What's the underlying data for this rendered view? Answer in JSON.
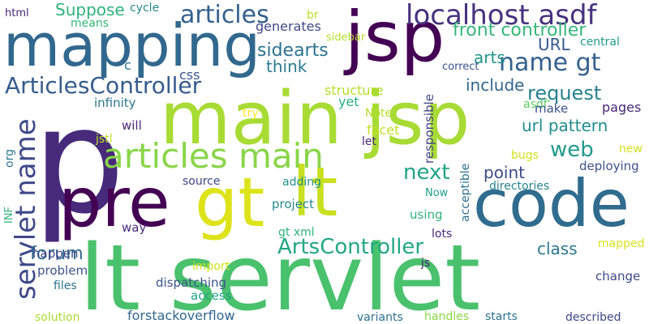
{
  "words": [
    {
      "text": "p",
      "color": "#472a7a"
    },
    {
      "text": "lt servlet",
      "color": "#4ac16d"
    },
    {
      "text": "main jsp",
      "color": "#a8db34"
    },
    {
      "text": "mapping",
      "color": "#31688e"
    },
    {
      "text": "jsp",
      "color": "#440154"
    },
    {
      "text": "pre",
      "color": "#440154"
    },
    {
      "text": "gt",
      "color": "#dde318"
    },
    {
      "text": "lt",
      "color": "#c8e020"
    },
    {
      "text": "code",
      "color": "#2f6c8e"
    },
    {
      "text": "articles main",
      "color": "#89d548"
    },
    {
      "text": "localhost asdf",
      "color": "#46327e"
    },
    {
      "text": "servlet name",
      "color": "#3e4989"
    },
    {
      "text": "ArticlesController",
      "color": "#365c8d"
    },
    {
      "text": "articles",
      "color": "#34618d"
    },
    {
      "text": "name gt",
      "color": "#34608d"
    },
    {
      "text": "ArtsController",
      "color": "#22a785"
    },
    {
      "text": "front controller",
      "color": "#35b779"
    },
    {
      "text": "request",
      "color": "#26828e"
    },
    {
      "text": "web",
      "color": "#1f9a8a"
    },
    {
      "text": "next",
      "color": "#20a386"
    },
    {
      "text": "url pattern",
      "color": "#228c8d"
    },
    {
      "text": "forum",
      "color": "#30698e"
    },
    {
      "text": "Suppose",
      "color": "#2eb37c"
    },
    {
      "text": "sidearts",
      "color": "#2c728e"
    },
    {
      "text": "think",
      "color": "#287c8e"
    },
    {
      "text": "URL",
      "color": "#375b8d"
    },
    {
      "text": "arts",
      "color": "#1f958b"
    },
    {
      "text": "include",
      "color": "#31678e"
    },
    {
      "text": "point",
      "color": "#3e4a89"
    },
    {
      "text": "class",
      "color": "#2a788e"
    },
    {
      "text": "generates",
      "color": "#3f4889"
    },
    {
      "text": "structure",
      "color": "#b5de2b"
    },
    {
      "text": "infinity",
      "color": "#2a778e"
    },
    {
      "text": "means",
      "color": "#35b779"
    },
    {
      "text": "cycle",
      "color": "#23888e"
    },
    {
      "text": "html",
      "color": "#482677"
    },
    {
      "text": "br",
      "color": "#bddf26"
    },
    {
      "text": "sidebar",
      "color": "#b5de2b"
    },
    {
      "text": "central",
      "color": "#1f9a8a"
    },
    {
      "text": "asdf'",
      "color": "#5ec962"
    },
    {
      "text": "correct",
      "color": "#3b528b"
    },
    {
      "text": "c",
      "color": "#2c728e"
    },
    {
      "text": "css",
      "color": "#39558c"
    },
    {
      "text": "pages",
      "color": "#482878"
    },
    {
      "text": "make",
      "color": "#3b528b"
    },
    {
      "text": "yet",
      "color": "#29af7f"
    },
    {
      "text": "try",
      "color": "#fde725"
    },
    {
      "text": "Note",
      "color": "#b5de2b"
    },
    {
      "text": "facet",
      "color": "#c2df23"
    },
    {
      "text": "responsible",
      "color": "#414487"
    },
    {
      "text": "will",
      "color": "#482878"
    },
    {
      "text": "jstl",
      "color": "#bddf26"
    },
    {
      "text": "let",
      "color": "#482878"
    },
    {
      "text": "bugs",
      "color": "#d0e11c"
    },
    {
      "text": "new",
      "color": "#d2e21b"
    },
    {
      "text": "org",
      "color": "#2a788e"
    },
    {
      "text": "deploying",
      "color": "#3b528b"
    },
    {
      "text": "directories",
      "color": "#25858e"
    },
    {
      "text": "source",
      "color": "#414487"
    },
    {
      "text": "adding",
      "color": "#21918c"
    },
    {
      "text": "acceptible",
      "color": "#2c728e"
    },
    {
      "text": "Now",
      "color": "#1f9e89"
    },
    {
      "text": "project",
      "color": "#24878e"
    },
    {
      "text": "INF",
      "color": "#31b57b"
    },
    {
      "text": "way",
      "color": "#472c7a"
    },
    {
      "text": "using",
      "color": "#2fb47c"
    },
    {
      "text": "gt xml",
      "color": "#2eb37c"
    },
    {
      "text": "lots",
      "color": "#482878"
    },
    {
      "text": "happen",
      "color": "#3e4989"
    },
    {
      "text": "js",
      "color": "#481f70"
    },
    {
      "text": "mapped",
      "color": "#d8e219"
    },
    {
      "text": "problem",
      "color": "#3b528b"
    },
    {
      "text": "import",
      "color": "#d2e21b"
    },
    {
      "text": "files",
      "color": "#2c728e"
    },
    {
      "text": "dispatching",
      "color": "#3a548c"
    },
    {
      "text": "change",
      "color": "#3e4a89"
    },
    {
      "text": "access",
      "color": "#1fa188"
    },
    {
      "text": "solution",
      "color": "#addc30"
    },
    {
      "text": "forstackoverflow",
      "color": "#31688e"
    },
    {
      "text": "variants",
      "color": "#2c728e"
    },
    {
      "text": "handles",
      "color": "#8bd646"
    },
    {
      "text": "starts",
      "color": "#2c728e"
    },
    {
      "text": "described",
      "color": "#3f4788"
    }
  ]
}
